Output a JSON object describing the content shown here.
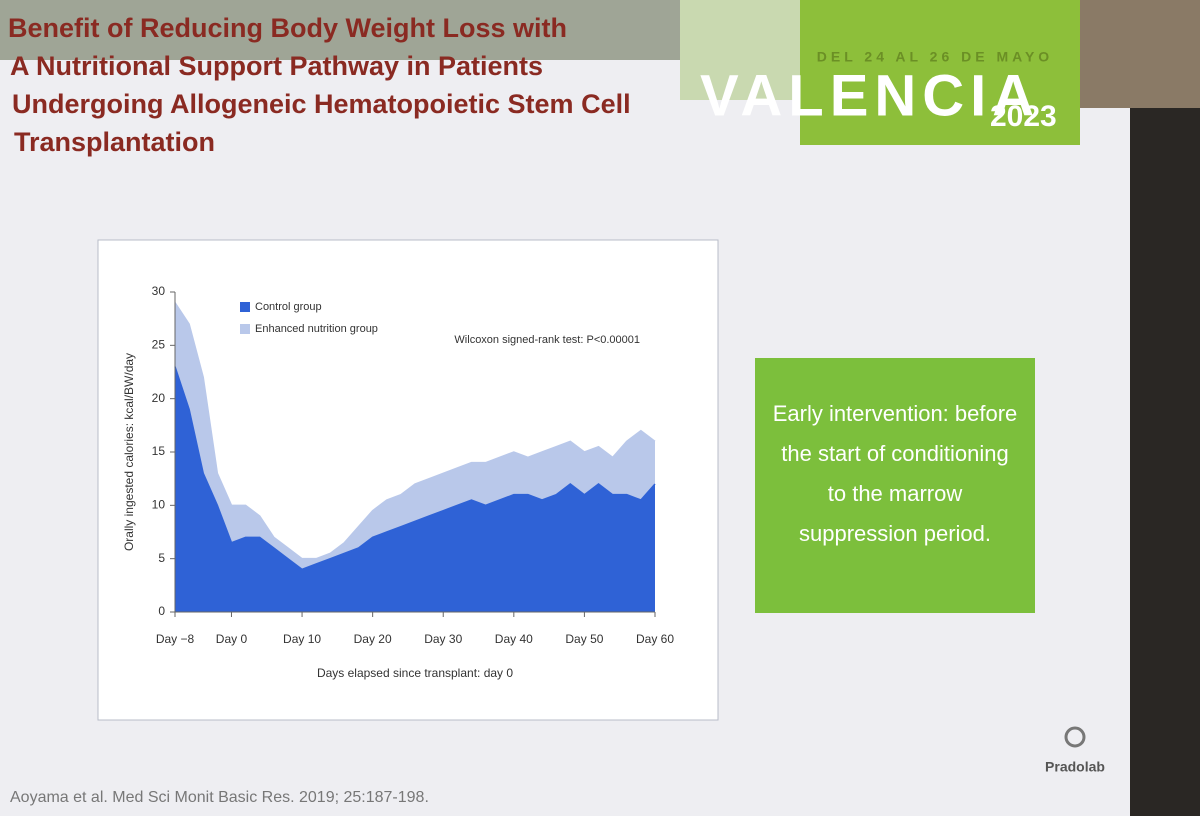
{
  "slide": {
    "banner": {
      "dates": "DEL 24 AL 26 DE MAYO",
      "city": "VALENCIA",
      "year": "2023"
    },
    "title_lines": [
      "Benefit of Reducing Body Weight Loss with",
      "A Nutritional Support Pathway in Patients",
      "Undergoing Allogeneic Hematopoietic Stem Cell",
      "Transplantation"
    ],
    "callout_lines": [
      "Early intervention: before",
      "the start of conditioning",
      "to the marrow",
      "suppression period."
    ],
    "citation": "Aoyama et al. Med Sci Monit Basic Res. 2019; 25:187-198.",
    "logo": "Pradolab"
  },
  "chart_data": {
    "type": "area",
    "annotation": "Wilcoxon signed-rank test: P<0.00001",
    "x_label": "Days elapsed since transplant: day 0",
    "y_label": "Orally ingested calories: kcal/BW/day",
    "x": [
      -8,
      -6,
      -4,
      -2,
      0,
      2,
      4,
      6,
      8,
      10,
      12,
      14,
      16,
      18,
      20,
      22,
      24,
      26,
      28,
      30,
      32,
      34,
      36,
      38,
      40,
      42,
      44,
      46,
      48,
      50,
      52,
      54,
      56,
      58,
      60
    ],
    "series": [
      {
        "name": "Enhanced nutrition group",
        "color": "#b9c8ea",
        "values": [
          29,
          27,
          22,
          13,
          10,
          10,
          9,
          7,
          6,
          5,
          5,
          5.5,
          6.5,
          8,
          9.5,
          10.5,
          11,
          12,
          12.5,
          13,
          13.5,
          14,
          14,
          14.5,
          15,
          14.5,
          15,
          15.5,
          16,
          15,
          15.5,
          14.5,
          16,
          17,
          16
        ]
      },
      {
        "name": "Control group",
        "color": "#2f62d6",
        "values": [
          23,
          19,
          13,
          10,
          6.5,
          7,
          7,
          6,
          5,
          4,
          4.5,
          5,
          5.5,
          6,
          7,
          7.5,
          8,
          8.5,
          9,
          9.5,
          10,
          10.5,
          10,
          10.5,
          11,
          11,
          10.5,
          11,
          12,
          11,
          12,
          11,
          11,
          10.5,
          12
        ]
      }
    ],
    "xlim": [
      -8,
      60
    ],
    "xticks": [
      {
        "value": -8,
        "label": "Day −8"
      },
      {
        "value": 0,
        "label": "Day 0"
      },
      {
        "value": 10,
        "label": "Day 10"
      },
      {
        "value": 20,
        "label": "Day 20"
      },
      {
        "value": 30,
        "label": "Day 30"
      },
      {
        "value": 40,
        "label": "Day 40"
      },
      {
        "value": 50,
        "label": "Day 50"
      },
      {
        "value": 60,
        "label": "Day 60"
      }
    ],
    "ylim": [
      0,
      30
    ],
    "yticks": [
      0,
      5,
      10,
      15,
      20,
      25,
      30
    ]
  }
}
